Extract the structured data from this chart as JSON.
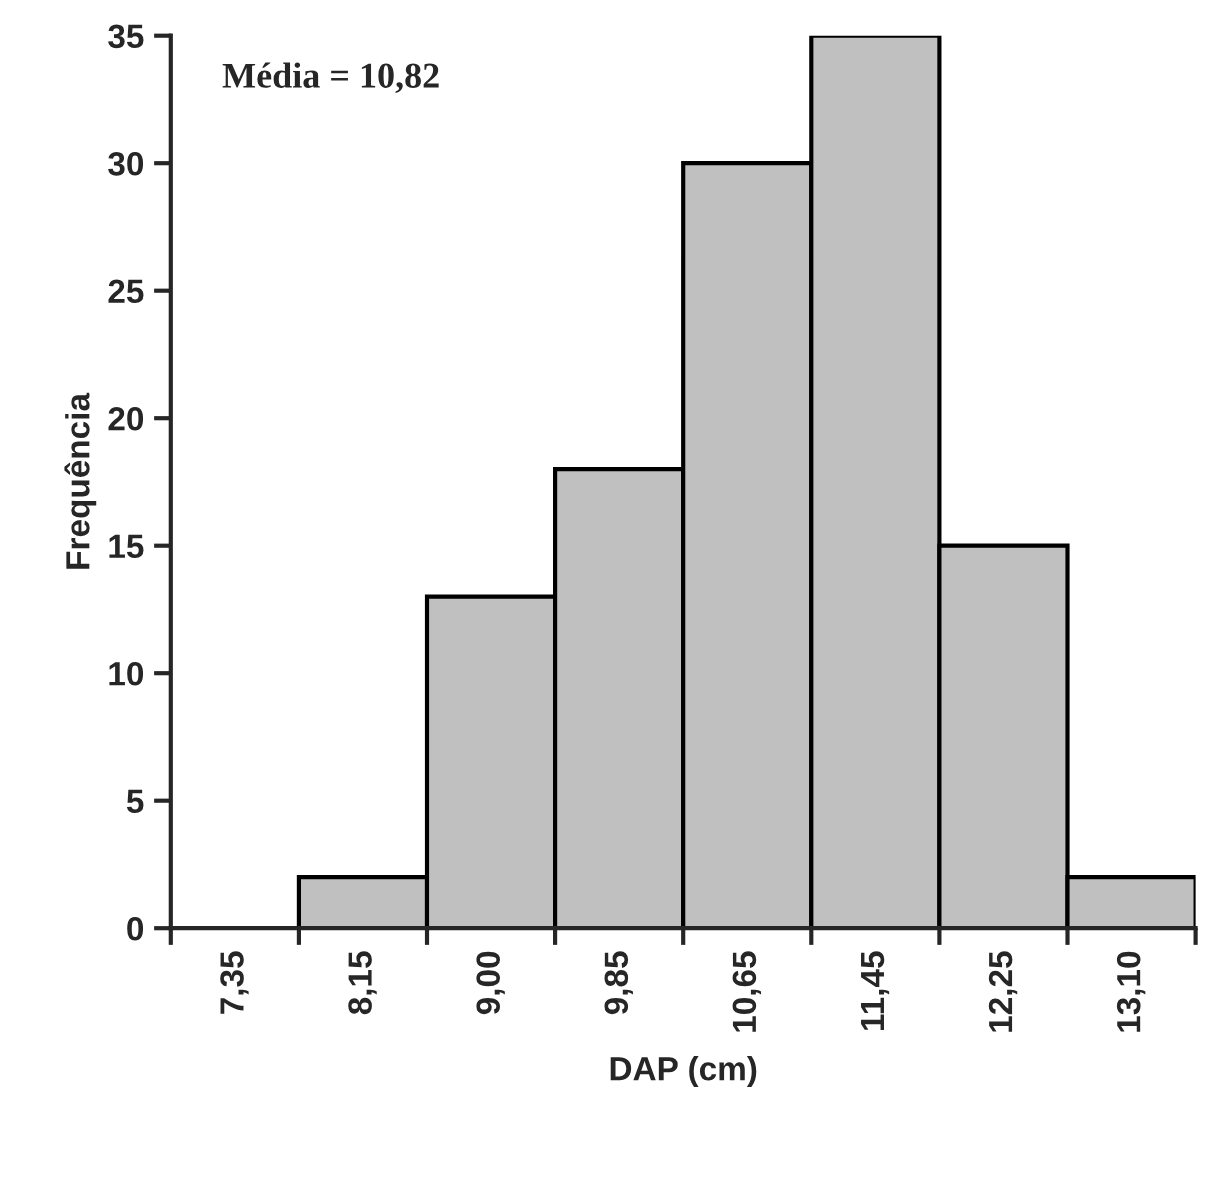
{
  "chart_data": {
    "type": "bar",
    "xlabel": "DAP (cm)",
    "ylabel": "Frequência",
    "categories": [
      "7,35",
      "8,15",
      "9,00",
      "9,85",
      "10,65",
      "11,45",
      "12,25",
      "13,10"
    ],
    "values": [
      0,
      2,
      13,
      18,
      30,
      35,
      15,
      2
    ],
    "color": "#c0c0c0",
    "ylim": [
      0,
      35
    ],
    "yticks": [
      0,
      5,
      10,
      15,
      20,
      25,
      30,
      35
    ],
    "grid": false,
    "legend": false,
    "annotations": [
      "Média = 10,82"
    ]
  }
}
